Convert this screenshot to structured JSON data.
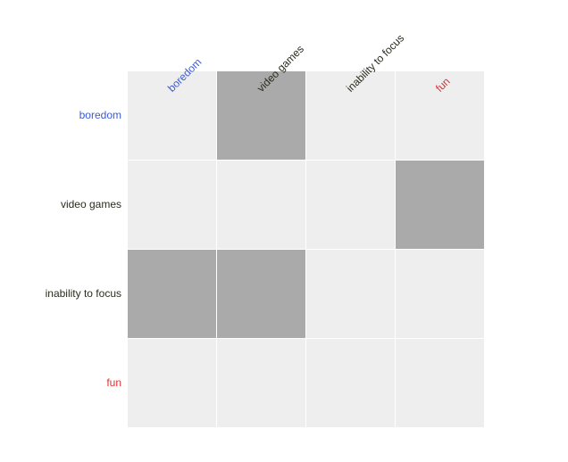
{
  "matrix": {
    "labels": [
      {
        "text": "boredom",
        "color": "#3b5bdb"
      },
      {
        "text": "video games",
        "color": "#2b2b1e"
      },
      {
        "text": "inability to focus",
        "color": "#2b2b1e"
      },
      {
        "text": "fun",
        "color": "#e03131"
      }
    ],
    "cells": [
      [
        0,
        1,
        0,
        0
      ],
      [
        0,
        0,
        0,
        1
      ],
      [
        1,
        1,
        0,
        0
      ],
      [
        0,
        0,
        0,
        0
      ]
    ],
    "colors": {
      "filled": "#aaaaaa",
      "empty": "#eeeeee"
    }
  }
}
